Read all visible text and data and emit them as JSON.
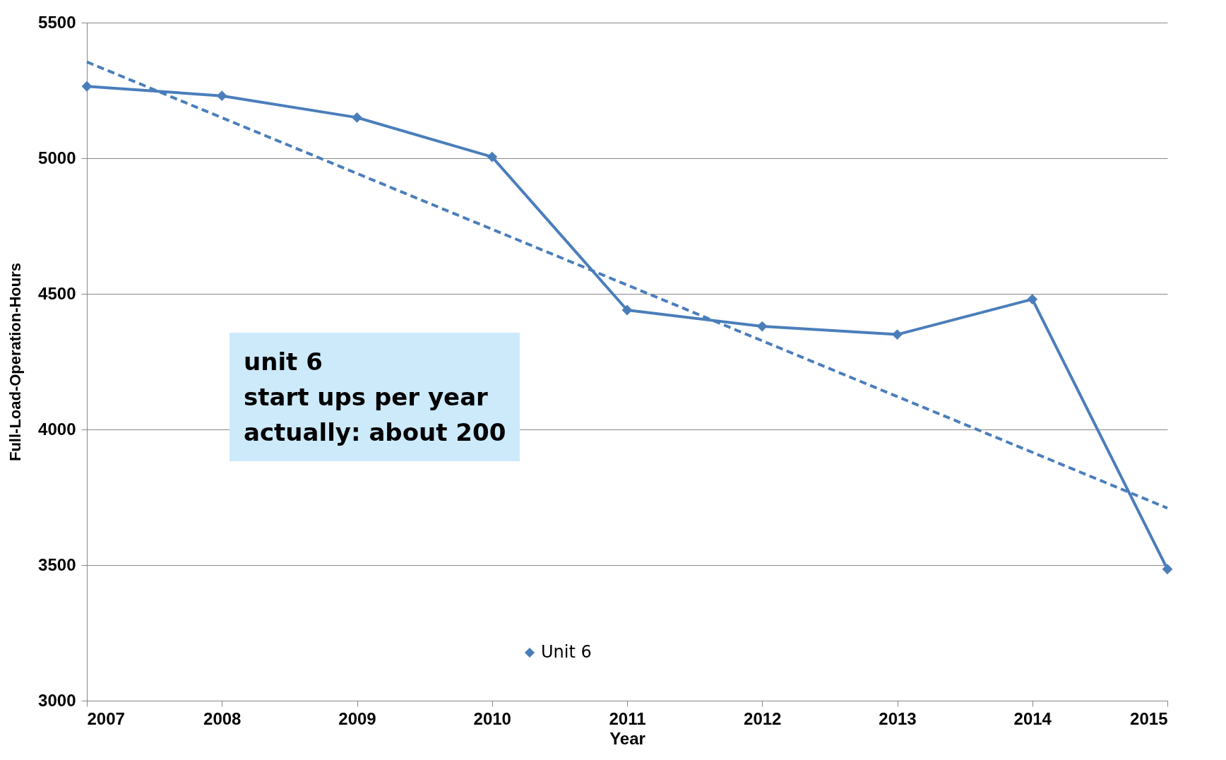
{
  "chart_data": {
    "type": "line",
    "xlabel": "Year",
    "ylabel": "Full-Load-Operation-Hours",
    "x": [
      2007,
      2008,
      2009,
      2010,
      2011,
      2012,
      2013,
      2014,
      2015
    ],
    "series": [
      {
        "name": "Unit 6",
        "color": "#4a7ebb",
        "values": [
          5265,
          5230,
          5150,
          5005,
          4440,
          4380,
          4350,
          4480,
          3485
        ],
        "marker": "diamond",
        "line_style": "solid"
      },
      {
        "type": "line",
        "color": "#4a7ebb",
        "x": [
          2007,
          2015
        ],
        "values": [
          5355,
          3710
        ],
        "marker": "none",
        "line_style": "dashed"
      }
    ],
    "xlim": [
      2007,
      2015
    ],
    "xticks": [
      2007,
      2008,
      2009,
      2010,
      2011,
      2012,
      2013,
      2014,
      2015
    ],
    "ylim": [
      3000,
      5500
    ],
    "yticks": [
      3000,
      3500,
      4000,
      4500,
      5000,
      5500
    ],
    "grid": "y",
    "legend": "bottom",
    "annotations": [
      "unit 6",
      "start ups per year",
      "actually:  about 200"
    ]
  }
}
